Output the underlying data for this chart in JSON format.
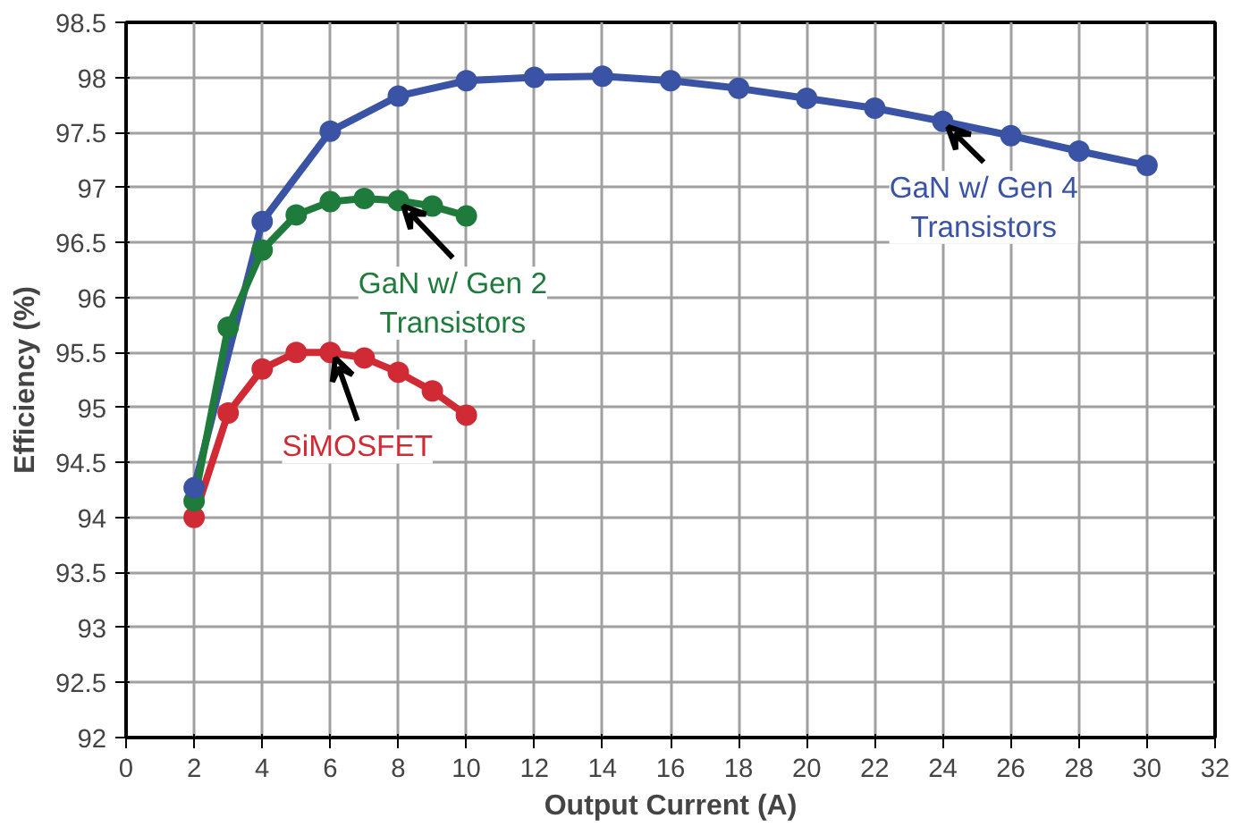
{
  "chart_data": {
    "type": "line",
    "xlabel": "Output Current (A)",
    "ylabel": "Efficiency (%)",
    "xlim": [
      0,
      32
    ],
    "ylim": [
      92,
      98.5
    ],
    "xticks": [
      0,
      2,
      4,
      6,
      8,
      10,
      12,
      14,
      16,
      18,
      20,
      22,
      24,
      26,
      28,
      30,
      32
    ],
    "yticks": [
      92,
      92.5,
      93,
      93.5,
      94,
      94.5,
      95,
      95.5,
      96,
      96.5,
      97,
      97.5,
      98,
      98.5
    ],
    "grid": true,
    "marker": "circle",
    "line_style": "solid",
    "series": [
      {
        "color": "#3a53a4",
        "x": [
          2,
          4,
          6,
          8,
          10,
          12,
          14,
          16,
          18,
          20,
          22,
          24,
          26,
          28,
          30
        ],
        "values": [
          94.27,
          96.69,
          97.51,
          97.83,
          97.97,
          98.0,
          98.01,
          97.97,
          97.9,
          97.81,
          97.72,
          97.6,
          97.47,
          97.33,
          97.2
        ]
      },
      {
        "color": "#1e7b3c",
        "x": [
          2,
          3,
          4,
          5,
          6,
          7,
          8,
          9,
          10
        ],
        "values": [
          94.15,
          95.73,
          96.43,
          96.75,
          96.87,
          96.9,
          96.88,
          96.83,
          96.74
        ]
      },
      {
        "color": "#d02a35",
        "x": [
          2,
          3,
          4,
          5,
          6,
          7,
          8,
          9,
          10
        ],
        "values": [
          94.0,
          94.95,
          95.35,
          95.5,
          95.5,
          95.45,
          95.32,
          95.15,
          94.93
        ]
      }
    ],
    "annotations": [
      {
        "text": "GaN w/ Gen 4\nTransistors",
        "x": 24,
        "y": 97.6
      },
      {
        "text": "GaN w/ Gen 2\nTransistors",
        "x": 8,
        "y": 96.88
      },
      {
        "text": "SiMOSFET",
        "x": 6,
        "y": 95.5
      }
    ]
  }
}
